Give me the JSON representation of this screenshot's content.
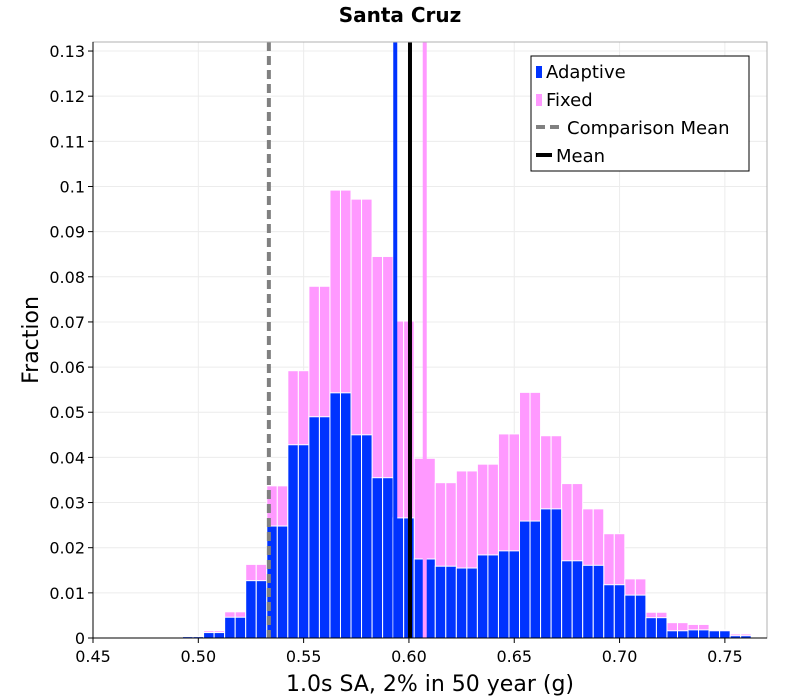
{
  "chart_data": {
    "type": "bar",
    "title": "Santa Cruz",
    "xlabel": "1.0s SA, 2% in 50 year (g)",
    "ylabel": "Fraction",
    "xlim": [
      0.45,
      0.77
    ],
    "ylim": [
      0,
      0.132
    ],
    "xticks": [
      0.45,
      0.5,
      0.55,
      0.6,
      0.65,
      0.7,
      0.75
    ],
    "xtick_labels": [
      "0.45",
      "0.50",
      "0.55",
      "0.60",
      "0.65",
      "0.70",
      "0.75"
    ],
    "yticks": [
      0,
      0.01,
      0.02,
      0.03,
      0.04,
      0.05,
      0.06,
      0.07,
      0.08,
      0.09,
      0.1,
      0.11,
      0.12,
      0.13
    ],
    "ytick_labels": [
      "0",
      "0.01",
      "0.02",
      "0.03",
      "0.04",
      "0.05",
      "0.06",
      "0.07",
      "0.08",
      "0.09",
      "0.1",
      "0.11",
      "0.12",
      "0.13"
    ],
    "grid": true,
    "legend_position": "top-right",
    "bin_width": 0.005,
    "x": [
      0.48,
      0.485,
      0.49,
      0.495,
      0.5,
      0.505,
      0.51,
      0.515,
      0.52,
      0.525,
      0.53,
      0.535,
      0.54,
      0.545,
      0.55,
      0.555,
      0.56,
      0.565,
      0.57,
      0.575,
      0.58,
      0.585,
      0.59,
      0.595,
      0.6,
      0.605,
      0.61,
      0.615,
      0.62,
      0.625,
      0.63,
      0.635,
      0.64,
      0.645,
      0.65,
      0.655,
      0.66,
      0.665,
      0.67,
      0.675,
      0.68,
      0.685,
      0.69,
      0.695,
      0.7,
      0.705,
      0.71,
      0.715,
      0.72,
      0.725,
      0.73,
      0.735,
      0.74,
      0.745,
      0.75,
      0.755,
      0.76
    ],
    "series": [
      {
        "name": "Fixed",
        "color": "#ff99ff",
        "values": [
          0,
          0,
          0,
          0.0003,
          0.0003,
          0.0016,
          0.0016,
          0.0058,
          0.0058,
          0.0163,
          0.0163,
          0.0337,
          0.0337,
          0.0592,
          0.0592,
          0.0779,
          0.0779,
          0.0992,
          0.0992,
          0.0972,
          0.0972,
          0.0845,
          0.0845,
          0.0702,
          0.0702,
          0.0398,
          0.0398,
          0.0344,
          0.0344,
          0.037,
          0.037,
          0.0385,
          0.0385,
          0.0452,
          0.0452,
          0.0544,
          0.0544,
          0.0448,
          0.0448,
          0.0342,
          0.0342,
          0.0286,
          0.0286,
          0.0231,
          0.0231,
          0.0131,
          0.0131,
          0.0057,
          0.0057,
          0.0034,
          0.0034,
          0.003,
          0.003,
          0.0018,
          0.0018,
          0.0009,
          0.0009
        ]
      },
      {
        "name": "Adaptive",
        "color": "#0033ff",
        "values": [
          0,
          0,
          0,
          0.0003,
          0.0003,
          0.0012,
          0.0012,
          0.0046,
          0.0046,
          0.0127,
          0.0127,
          0.0248,
          0.0248,
          0.0428,
          0.0428,
          0.049,
          0.049,
          0.0543,
          0.0543,
          0.045,
          0.045,
          0.0355,
          0.0355,
          0.0266,
          0.0266,
          0.0175,
          0.0175,
          0.0159,
          0.0159,
          0.0155,
          0.0155,
          0.0184,
          0.0184,
          0.0193,
          0.0193,
          0.0259,
          0.0259,
          0.0286,
          0.0286,
          0.0171,
          0.0171,
          0.0161,
          0.0161,
          0.0118,
          0.0118,
          0.0095,
          0.0095,
          0.0045,
          0.0045,
          0.0016,
          0.0016,
          0.0018,
          0.0018,
          0.0016,
          0.0016,
          0.0005,
          0.0005
        ]
      }
    ],
    "vertical_lines": [
      {
        "label": "Adaptive",
        "x": 0.5935,
        "color": "#0033ff",
        "style": "solid"
      },
      {
        "label": "Fixed",
        "x": 0.6075,
        "color": "#ff99ff",
        "style": "solid"
      },
      {
        "label": "Comparison Mean",
        "x": 0.5335,
        "color": "#808080",
        "style": "dashed"
      },
      {
        "label": "Mean",
        "x": 0.6005,
        "color": "#000000",
        "style": "solid"
      }
    ],
    "legend": [
      {
        "label": "Adaptive",
        "color": "#0033ff",
        "marker": "bar"
      },
      {
        "label": "Fixed",
        "color": "#ff99ff",
        "marker": "bar"
      },
      {
        "label": "Comparison Mean",
        "color": "#808080",
        "marker": "dashed-line"
      },
      {
        "label": "Mean",
        "color": "#000000",
        "marker": "line"
      }
    ]
  }
}
